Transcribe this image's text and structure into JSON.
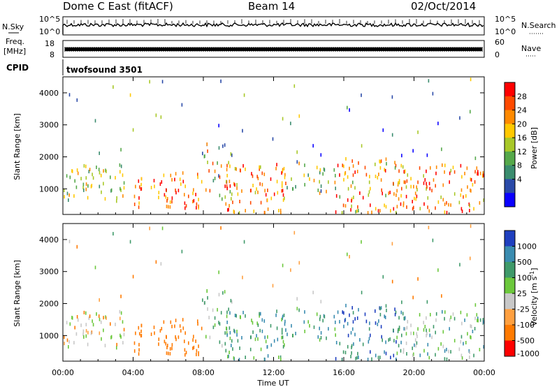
{
  "header": {
    "radar": "Dome C East (fitACF)",
    "beam": "Beam 14",
    "date": "02/Oct/2014"
  },
  "info_panels": {
    "nsky_label": "N.Sky",
    "nsearch_label": "N.Search",
    "nsky_ticks": [
      "10^5",
      "10^0"
    ],
    "nsearch_ticks": [
      "10^5",
      "10^0"
    ],
    "freq_label": "Freq.",
    "freq_unit": "[MHz]",
    "freq_ticks": [
      "18",
      "8"
    ],
    "nave_label": "Nave",
    "nave_ticks": [
      "60",
      "0"
    ],
    "cpid_label": "CPID",
    "cpid_text": "twofsound 3501"
  },
  "colorbars": {
    "power": {
      "title": "Power [dB]",
      "ticks": [
        "28",
        "24",
        "20",
        "16",
        "12",
        "8",
        "4"
      ],
      "colors": [
        "#ff0000",
        "#ff4a00",
        "#ff8a00",
        "#ffc800",
        "#a8c828",
        "#55a84a",
        "#3a8c6e",
        "#2a4aa8",
        "#0a00ff"
      ]
    },
    "velocity": {
      "title": "Velocity [m s",
      "title_sup": "-1",
      "title_end": "]",
      "ticks": [
        "1000",
        "500",
        "100",
        "25",
        "-25",
        "-100",
        "-500",
        "-1000"
      ],
      "colors": [
        "#1f3fbf",
        "#3a8cb0",
        "#3f9a6a",
        "#6cc83c",
        "#c8c8c8",
        "#ffa040",
        "#ff7a00",
        "#ff0000"
      ]
    }
  },
  "chart_data": [
    {
      "type": "heatmap",
      "name": "power",
      "ylabel": "Slant Range [km]",
      "y_ticks": [
        1000,
        2000,
        3000,
        4000
      ],
      "ylim": [
        200,
        4500
      ],
      "xlim": [
        0,
        24
      ]
    },
    {
      "type": "heatmap",
      "name": "velocity",
      "ylabel": "Slant Range [km]",
      "xlabel": "Time UT",
      "x_ticks": [
        "00:00",
        "04:00",
        "08:00",
        "12:00",
        "16:00",
        "20:00",
        "00:00"
      ],
      "y_ticks": [
        1000,
        2000,
        3000,
        4000
      ],
      "ylim": [
        200,
        4500
      ],
      "xlim": [
        0,
        24
      ]
    }
  ]
}
